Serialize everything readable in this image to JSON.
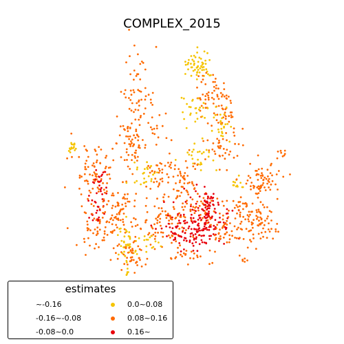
{
  "title": "COMPLEX_2015",
  "legend": {
    "title": "estimates",
    "entries": [
      {
        "label": "~-0.16",
        "color": null
      },
      {
        "label": "-0.16~-0.08",
        "color": null
      },
      {
        "label": "-0.08~0.0",
        "color": null
      },
      {
        "label": "0.0~0.08",
        "color": "#f5c400"
      },
      {
        "label": "0.08~0.16",
        "color": "#ff6a00"
      },
      {
        "label": "0.16~",
        "color": "#e8000b"
      }
    ]
  },
  "colors": {
    "class_0_0_0_08": "#f5c400",
    "class_0_08_0_16": "#ff6a00",
    "class_0_16_plus": "#e8000b"
  }
}
